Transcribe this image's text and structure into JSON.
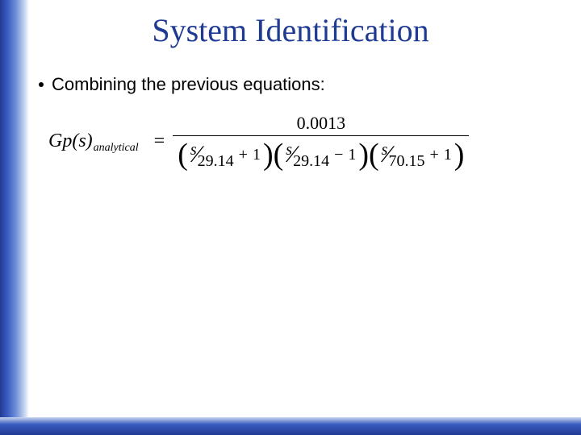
{
  "colors": {
    "accent_dark": "#1f3a93",
    "accent_mid": "#3a5bbf",
    "accent_light": "#6f8fd8",
    "accent_pale": "#c8d6f0",
    "text_black": "#000000",
    "background": "#ffffff"
  },
  "typography": {
    "title_font": "Times New Roman",
    "title_size_pt": 30,
    "body_font": "Arial",
    "body_size_pt": 17,
    "equation_font": "Times New Roman",
    "equation_size_pt": 18
  },
  "title": "System Identification",
  "bullet": {
    "text": "Combining the previous equations:"
  },
  "equation": {
    "lhs_main": "Gp(s)",
    "lhs_subscript": "analytical",
    "equals": "=",
    "numerator": "0.0013",
    "denominator_terms": [
      {
        "var": "s",
        "divisor": "29.14",
        "op": "+",
        "one": "1"
      },
      {
        "var": "s",
        "divisor": "29.14",
        "op": "−",
        "one": "1"
      },
      {
        "var": "s",
        "divisor": "70.15",
        "op": "+",
        "one": "1"
      }
    ]
  }
}
